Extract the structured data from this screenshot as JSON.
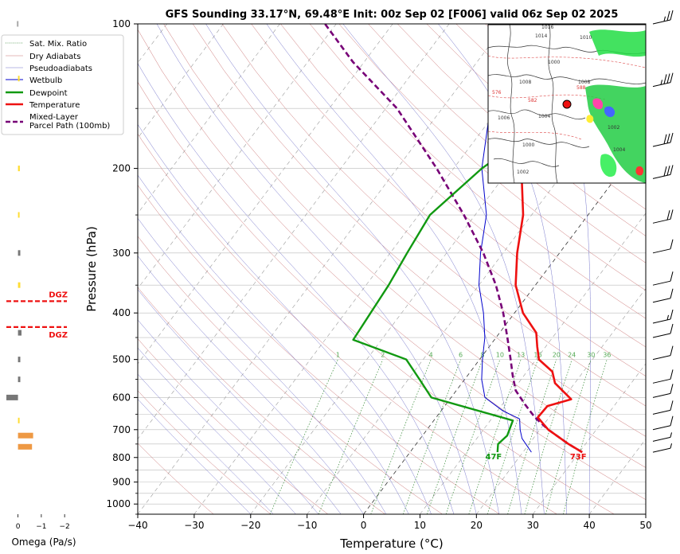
{
  "chart_data": [
    {
      "type": "line",
      "title": "GFS Sounding 33.17°N, 69.48°E Init: 00z Sep 02 [F006] valid 06z Sep 02 2025",
      "xlabel": "Temperature (°C)",
      "ylabel": "Pressure (hPa)",
      "xlim": [
        -40,
        50
      ],
      "ylim": [
        1050,
        100
      ],
      "y_scale": "log",
      "x_ticks": [
        -40,
        -30,
        -20,
        -10,
        0,
        10,
        20,
        30,
        40,
        50
      ],
      "y_ticks": [
        100,
        200,
        300,
        400,
        500,
        600,
        700,
        800,
        900,
        1000
      ],
      "mixing_ratio_labels": [
        "1",
        "2",
        "4",
        "6",
        "8",
        "10",
        "13",
        "16",
        "20",
        "24",
        "30",
        "36"
      ],
      "legend_position": "upper-left",
      "legend": [
        "Sat. Mix. Ratio",
        "Dry Adiabats",
        "Pseudoadiabats",
        "Wetbulb",
        "Dewpoint",
        "Temperature",
        "Mixed-Layer\nParcel Path (100mb)"
      ],
      "colors": {
        "temperature": "#ee1111",
        "dewpoint": "#119911",
        "wetbulb": "#0000cc",
        "parcel": "#770077",
        "dry_adiabat": "#cc7777",
        "moist_adiabat": "#7777cc",
        "mixing_ratio": "#338833"
      },
      "series": [
        {
          "name": "Temperature",
          "points": [
            [
              30.5,
              780
            ],
            [
              27.0,
              750
            ],
            [
              21.5,
              700
            ],
            [
              18.0,
              660
            ],
            [
              18.2,
              625
            ],
            [
              21.5,
              605
            ],
            [
              16.5,
              560
            ],
            [
              14.5,
              530
            ],
            [
              10.5,
              500
            ],
            [
              8.5,
              470
            ],
            [
              6.5,
              440
            ],
            [
              1.5,
              400
            ],
            [
              -3.5,
              350
            ],
            [
              -7.5,
              300
            ],
            [
              -11.5,
              250
            ],
            [
              -18.0,
              200
            ],
            [
              -25.0,
              160
            ],
            [
              -30.5,
              135
            ],
            [
              -33.0,
              100
            ]
          ]
        },
        {
          "name": "Dewpoint",
          "points": [
            [
              15.5,
              780
            ],
            [
              14.5,
              750
            ],
            [
              15.0,
              720
            ],
            [
              14.0,
              670
            ],
            [
              -3.5,
              600
            ],
            [
              -8.0,
              550
            ],
            [
              -13.0,
              500
            ],
            [
              -25.0,
              455
            ],
            [
              -25.5,
              400
            ],
            [
              -26.0,
              350
            ],
            [
              -27.0,
              300
            ],
            [
              -28.0,
              250
            ],
            [
              -25.0,
              200
            ],
            [
              -18.0,
              150
            ],
            [
              -13.0,
              100
            ]
          ]
        },
        {
          "name": "Wetbulb",
          "points": [
            [
              21.5,
              780
            ],
            [
              18.0,
              730
            ],
            [
              16.5,
              700
            ],
            [
              15.0,
              665
            ],
            [
              11.0,
              640
            ],
            [
              6.0,
              600
            ],
            [
              3.0,
              550
            ],
            [
              0.5,
              500
            ],
            [
              -2.0,
              450
            ],
            [
              -5.5,
              400
            ],
            [
              -10.0,
              350
            ],
            [
              -14.0,
              300
            ],
            [
              -18.0,
              250
            ],
            [
              -25.0,
              200
            ],
            [
              -31.5,
              150
            ],
            [
              -34.0,
              135
            ],
            [
              -35.0,
              100
            ]
          ]
        },
        {
          "name": "Mixed-Layer Parcel Path (100mb)",
          "points": [
            [
              30.5,
              780
            ],
            [
              27.0,
              750
            ],
            [
              21.5,
              700
            ],
            [
              17.5,
              660
            ],
            [
              14.0,
              620
            ],
            [
              10.5,
              580
            ],
            [
              8.0,
              540
            ],
            [
              5.5,
              500
            ],
            [
              2.0,
              450
            ],
            [
              -2.0,
              400
            ],
            [
              -7.0,
              350
            ],
            [
              -13.5,
              300
            ],
            [
              -22.0,
              250
            ],
            [
              -33.0,
              200
            ],
            [
              -48.0,
              150
            ],
            [
              -62.0,
              120
            ],
            [
              -72.0,
              100
            ]
          ]
        }
      ],
      "annotations": [
        {
          "text": "73F",
          "x": 30.5,
          "y": 800,
          "color": "#ee1111"
        },
        {
          "text": "47F",
          "x": 15.5,
          "y": 800,
          "color": "#119911"
        }
      ]
    },
    {
      "type": "bar",
      "xlabel": "Omega (Pa/s)",
      "x_ticks": [
        "0",
        "−1",
        "−2"
      ],
      "xlim": [
        0.5,
        -2.2
      ],
      "bars": [
        {
          "p": 100,
          "value": 0.05,
          "color": "#aaaaaa"
        },
        {
          "p": 130,
          "value": -0.05,
          "color": "#ffdd33"
        },
        {
          "p": 200,
          "value": -0.08,
          "color": "#ffdd33"
        },
        {
          "p": 250,
          "value": -0.05,
          "color": "#ffdd33"
        },
        {
          "p": 300,
          "value": -0.1,
          "color": "#777777"
        },
        {
          "p": 350,
          "value": -0.1,
          "color": "#ffdd33"
        },
        {
          "p": 440,
          "value": -0.15,
          "color": "#777777"
        },
        {
          "p": 500,
          "value": -0.1,
          "color": "#777777"
        },
        {
          "p": 550,
          "value": -0.1,
          "color": "#777777"
        },
        {
          "p": 600,
          "value": 0.5,
          "color": "#777777"
        },
        {
          "p": 670,
          "value": -0.05,
          "color": "#ffdd33"
        },
        {
          "p": 720,
          "value": -0.65,
          "color": "#ee9944"
        },
        {
          "p": 760,
          "value": -0.6,
          "color": "#ee9944"
        }
      ],
      "dgz": [
        {
          "label": "DGZ",
          "p": 378
        },
        {
          "label": "DGZ",
          "p": 428
        }
      ]
    }
  ],
  "inset_map": {
    "contour_labels": [
      "1016",
      "1014",
      "1010",
      "1008",
      "1000",
      "1006",
      "1004",
      "1002",
      "1008",
      "1000",
      "1004",
      "1002",
      "576",
      "582",
      "588"
    ],
    "marker_color": "#ee1111"
  },
  "wind_barbs": [
    {
      "p": 100,
      "speed": 25
    },
    {
      "p": 135,
      "speed": 35
    },
    {
      "p": 180,
      "speed": 30
    },
    {
      "p": 210,
      "speed": 30
    },
    {
      "p": 260,
      "speed": 20
    },
    {
      "p": 300,
      "speed": 10
    },
    {
      "p": 350,
      "speed": 10
    },
    {
      "p": 380,
      "speed": 10
    },
    {
      "p": 420,
      "speed": 15
    },
    {
      "p": 450,
      "speed": 10
    },
    {
      "p": 500,
      "speed": 10
    },
    {
      "p": 560,
      "speed": 10
    },
    {
      "p": 600,
      "speed": 10
    },
    {
      "p": 650,
      "speed": 10
    },
    {
      "p": 700,
      "speed": 10
    },
    {
      "p": 740,
      "speed": 5
    },
    {
      "p": 780,
      "speed": 5
    }
  ]
}
